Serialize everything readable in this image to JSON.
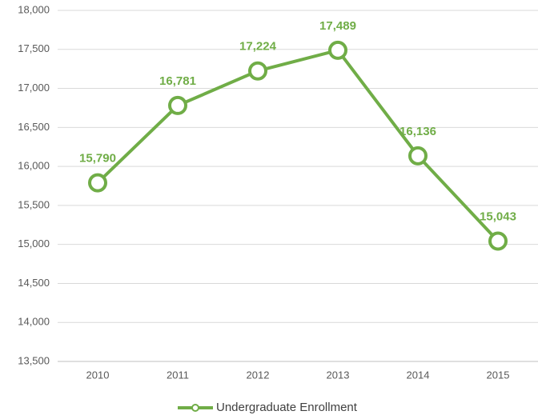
{
  "chart_data": {
    "type": "line",
    "categories": [
      "2010",
      "2011",
      "2012",
      "2013",
      "2014",
      "2015"
    ],
    "series": [
      {
        "name": "Undergraduate Enrollment",
        "color": "#70ad47",
        "values": [
          15790,
          16781,
          17224,
          17489,
          16136,
          15043
        ],
        "value_labels": [
          "15,790",
          "16,781",
          "17,224",
          "17,489",
          "16,136",
          "15,043"
        ]
      }
    ],
    "ylim": [
      13500,
      18000
    ],
    "yticks": [
      {
        "value": 13500,
        "label": "13,500"
      },
      {
        "value": 14000,
        "label": "14,000"
      },
      {
        "value": 14500,
        "label": "14,500"
      },
      {
        "value": 15000,
        "label": "15,000"
      },
      {
        "value": 15500,
        "label": "15,500"
      },
      {
        "value": 16000,
        "label": "16,000"
      },
      {
        "value": 16500,
        "label": "16,500"
      },
      {
        "value": 17000,
        "label": "17,000"
      },
      {
        "value": 17500,
        "label": "17,500"
      },
      {
        "value": 18000,
        "label": "18,000"
      }
    ],
    "grid": true,
    "legend": "bottom"
  }
}
